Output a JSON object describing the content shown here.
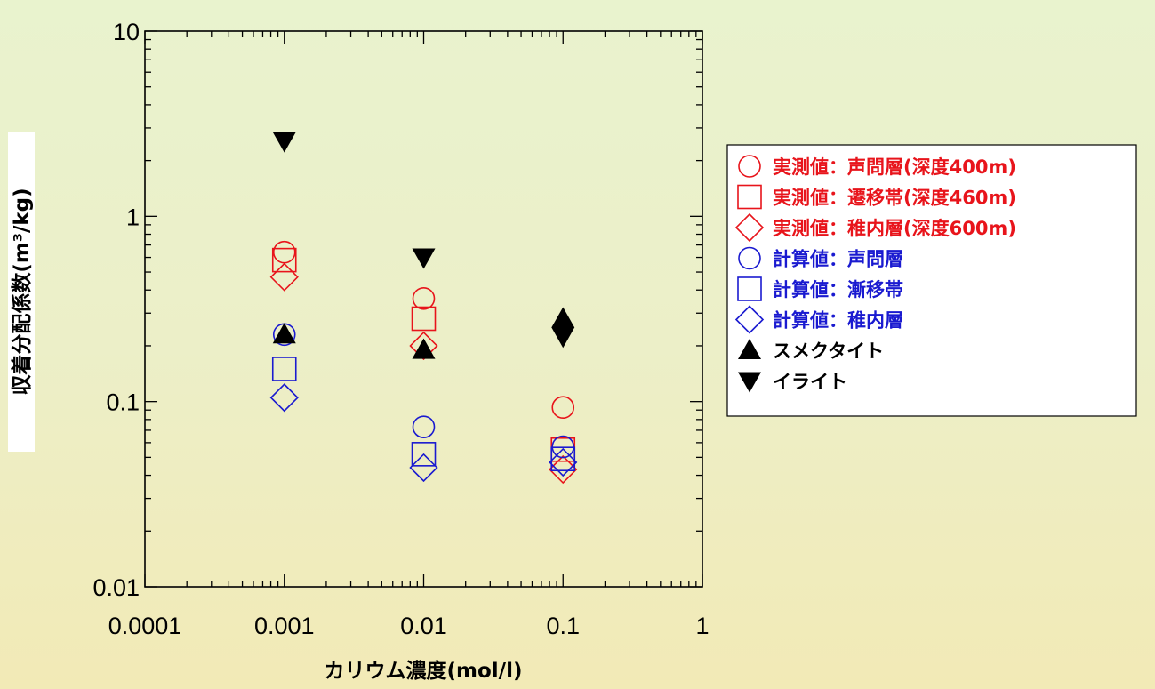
{
  "chart_data": {
    "type": "scatter",
    "x_scale": "log",
    "y_scale": "log",
    "xlim": [
      0.0001,
      1
    ],
    "ylim": [
      0.01,
      10
    ],
    "xlabel": "カリウム濃度(mol/l)",
    "ylabel": "収着分配係数(m³/kg)",
    "x_ticks": [
      {
        "value": 0.0001,
        "label": "0.0001"
      },
      {
        "value": 0.001,
        "label": "0.001"
      },
      {
        "value": 0.01,
        "label": "0.01"
      },
      {
        "value": 0.1,
        "label": "0.1"
      },
      {
        "value": 1,
        "label": "1"
      }
    ],
    "y_ticks": [
      {
        "value": 0.01,
        "label": "0.01"
      },
      {
        "value": 0.1,
        "label": "0.1"
      },
      {
        "value": 1,
        "label": "1"
      },
      {
        "value": 10,
        "label": "10"
      }
    ],
    "legend_position": "right",
    "series": [
      {
        "name": "実測値：声問層(深度400m)",
        "marker": "circle",
        "color": "#E8141B",
        "x": [
          0.001,
          0.01,
          0.1
        ],
        "y": [
          0.64,
          0.36,
          0.093
        ]
      },
      {
        "name": "実測値：遷移帯(深度460m)",
        "marker": "square",
        "color": "#E8141B",
        "x": [
          0.001,
          0.01,
          0.1
        ],
        "y": [
          0.58,
          0.28,
          0.055
        ]
      },
      {
        "name": "実測値：稚内層(深度600m)",
        "marker": "diamond",
        "color": "#E8141B",
        "x": [
          0.001,
          0.01,
          0.1
        ],
        "y": [
          0.47,
          0.2,
          0.043
        ]
      },
      {
        "name": "計算値：声問層",
        "marker": "circle",
        "color": "#1A1AD0",
        "x": [
          0.001,
          0.01,
          0.1
        ],
        "y": [
          0.23,
          0.073,
          0.057
        ]
      },
      {
        "name": "計算値：漸移帯",
        "marker": "square",
        "color": "#1A1AD0",
        "x": [
          0.001,
          0.01,
          0.1
        ],
        "y": [
          0.15,
          0.052,
          0.049
        ]
      },
      {
        "name": "計算値：稚内層",
        "marker": "diamond",
        "color": "#1A1AD0",
        "x": [
          0.001,
          0.01,
          0.1
        ],
        "y": [
          0.105,
          0.044,
          0.047
        ]
      },
      {
        "name": "スメクタイト",
        "marker": "triangle-up",
        "color": "#000000",
        "x": [
          0.001,
          0.01,
          0.1
        ],
        "y": [
          0.23,
          0.19,
          0.28
        ]
      },
      {
        "name": "イライト",
        "marker": "triangle-down",
        "color": "#000000",
        "x": [
          0.001,
          0.01,
          0.1
        ],
        "y": [
          2.55,
          0.6,
          0.225
        ]
      }
    ]
  }
}
